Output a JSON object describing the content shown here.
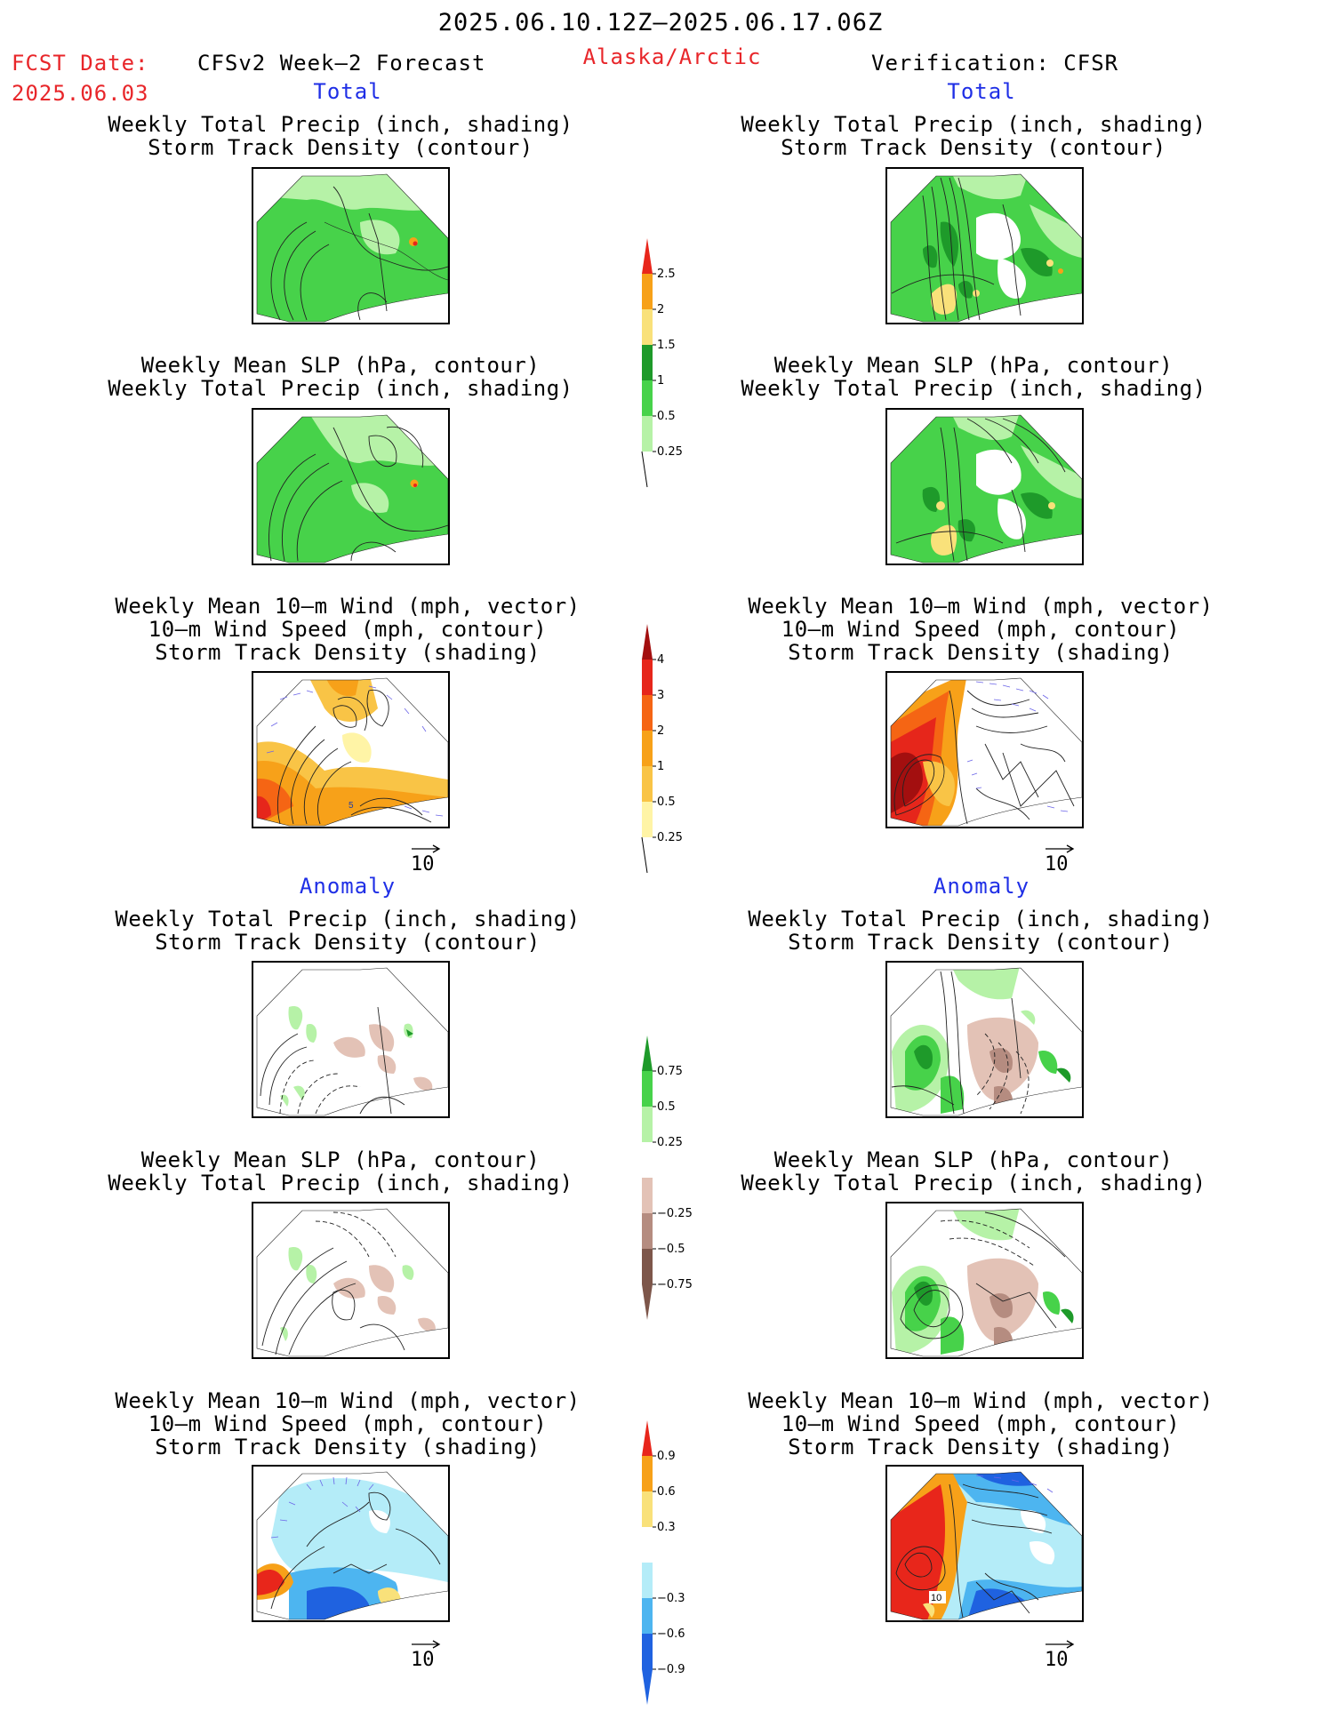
{
  "header": {
    "date_range": "2025.06.10.12Z—2025.06.17.06Z",
    "fcst_date_label": "FCST Date:",
    "fcst_date_value": "2025.06.03",
    "forecast_label": "CFSv2 Week—2 Forecast",
    "region": "Alaska/Arctic",
    "verification": "Verification: CFSR"
  },
  "sections": {
    "total_left": "Total",
    "total_right": "Total",
    "anomaly_left": "Anomaly",
    "anomaly_right": "Anomaly"
  },
  "panels": [
    {
      "id": "ltp",
      "line1": "Weekly Total Precip (inch, shading)",
      "line2": "Storm Track Density (contour)",
      "line3": ""
    },
    {
      "id": "rtp",
      "line1": "Weekly Total Precip (inch, shading)",
      "line2": "Storm Track Density (contour)",
      "line3": ""
    },
    {
      "id": "lslp",
      "line1": "Weekly Mean SLP (hPa, contour)",
      "line2": "Weekly Total Precip (inch, shading)",
      "line3": ""
    },
    {
      "id": "rslp",
      "line1": "Weekly Mean SLP (hPa, contour)",
      "line2": "Weekly Total Precip (inch, shading)",
      "line3": ""
    },
    {
      "id": "lwind",
      "line1": "Weekly Mean 10—m Wind (mph, vector)",
      "line2": "10—m Wind Speed (mph, contour)",
      "line3": "Storm Track Density (shading)"
    },
    {
      "id": "rwind",
      "line1": "Weekly Mean 10—m Wind (mph, vector)",
      "line2": "10—m Wind Speed (mph, contour)",
      "line3": "Storm Track Density (shading)"
    },
    {
      "id": "latp",
      "line1": "Weekly Total Precip (inch, shading)",
      "line2": "Storm Track Density (contour)",
      "line3": ""
    },
    {
      "id": "ratp",
      "line1": "Weekly Total Precip (inch, shading)",
      "line2": "Storm Track Density (contour)",
      "line3": ""
    },
    {
      "id": "laslp",
      "line1": "Weekly Mean SLP (hPa, contour)",
      "line2": "Weekly Total Precip (inch, shading)",
      "line3": ""
    },
    {
      "id": "raslp",
      "line1": "Weekly Mean SLP (hPa, contour)",
      "line2": "Weekly Total Precip (inch, shading)",
      "line3": ""
    },
    {
      "id": "lawind",
      "line1": "Weekly Mean 10—m Wind (mph, vector)",
      "line2": "10—m Wind Speed (mph, contour)",
      "line3": "Storm Track Density (shading)"
    },
    {
      "id": "rawind",
      "line1": "Weekly Mean 10—m Wind (mph, vector)",
      "line2": "10—m Wind Speed (mph, contour)",
      "line3": "Storm Track Density (shading)"
    }
  ],
  "map_labels": {
    "lwind_contour": "5",
    "rawind_contour": "10"
  },
  "vector_refs": [
    "10",
    "10",
    "10",
    "10"
  ],
  "colorbars": {
    "precip_total": {
      "ticks": [
        "2.5",
        "2",
        "1.5",
        "1",
        "0.5",
        "0.25"
      ],
      "colors": [
        "#e8261b",
        "#f7a119",
        "#f9e17a",
        "#1e9a2a",
        "#47d24a",
        "#b6f2a7"
      ]
    },
    "storm_total": {
      "ticks": [
        "4",
        "3",
        "2",
        "1",
        "0.5",
        "0.25"
      ],
      "colors": [
        "#a30f0f",
        "#e6261b",
        "#f56514",
        "#f7a119",
        "#f9c446",
        "#fff4a6"
      ]
    },
    "precip_anom": {
      "ticks": [
        "0.75",
        "0.5",
        "0.25",
        "−0.25",
        "−0.5",
        "−0.75"
      ],
      "colors": [
        "#1e9a2a",
        "#47d24a",
        "#b6f2a7",
        "#ffffff",
        "#e3c2b6",
        "#b58c80",
        "#7d564a"
      ]
    },
    "storm_anom": {
      "ticks": [
        "0.9",
        "0.6",
        "0.3",
        "−0.3",
        "−0.6",
        "−0.9"
      ],
      "colors": [
        "#e8261b",
        "#f7a119",
        "#f9e17a",
        "#ffffff",
        "#b4ecf8",
        "#4db5f0",
        "#1f62e0"
      ]
    }
  },
  "colors": {
    "title_red": "#e8262a",
    "section_blue": "#1f2fe6"
  }
}
